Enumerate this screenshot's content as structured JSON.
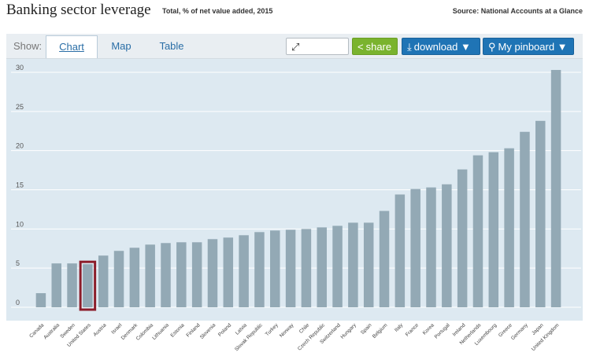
{
  "header": {
    "title": "Banking sector leverage",
    "subtitle": "Total, % of net value added, 2015",
    "source": "Source: National Accounts at a Glance"
  },
  "toolbar": {
    "show_label": "Show:",
    "tabs": [
      {
        "label": "Chart",
        "active": true
      },
      {
        "label": "Map",
        "active": false
      },
      {
        "label": "Table",
        "active": false
      }
    ],
    "fullscreen_label": "fullscreen",
    "share_label": "share",
    "download_label": "download ▼",
    "pinboard_label": "My pinboard ▼"
  },
  "colors": {
    "bar": "#93a9b5",
    "highlight_fill": "#93a9b5",
    "highlight_border": "#8c1d2a",
    "plot_background": "#dde9f1",
    "grid": "#ffffff"
  },
  "chart_data": {
    "type": "bar",
    "title": "Banking sector leverage",
    "subtitle": "Total, % of net value added, 2015",
    "ylim": [
      0,
      30
    ],
    "yticks": [
      0,
      5,
      10,
      15,
      20,
      25,
      30
    ],
    "grid": true,
    "highlight": "United States",
    "categories": [
      "Canada",
      "Australia",
      "Sweden",
      "United States",
      "Austria",
      "Israel",
      "Denmark",
      "Colombia",
      "Lithuania",
      "Estonia",
      "Finland",
      "Slovenia",
      "Poland",
      "Latvia",
      "Slovak Republic",
      "Turkey",
      "Norway",
      "Chile",
      "Czech Republic",
      "Switzerland",
      "Hungary",
      "Spain",
      "Belgium",
      "Italy",
      "France",
      "Korea",
      "Portugal",
      "Ireland",
      "Netherlands",
      "Luxembourg",
      "Greece",
      "Germany",
      "Japan",
      "United Kingdom"
    ],
    "values": [
      1.8,
      5.6,
      5.6,
      5.5,
      6.6,
      7.2,
      7.6,
      8.0,
      8.2,
      8.3,
      8.3,
      8.7,
      8.9,
      9.2,
      9.6,
      9.8,
      9.9,
      10.0,
      10.2,
      10.4,
      10.8,
      10.8,
      12.3,
      14.4,
      15.1,
      15.3,
      15.7,
      17.6,
      19.4,
      19.8,
      20.3,
      22.4,
      23.8,
      30.3
    ]
  }
}
